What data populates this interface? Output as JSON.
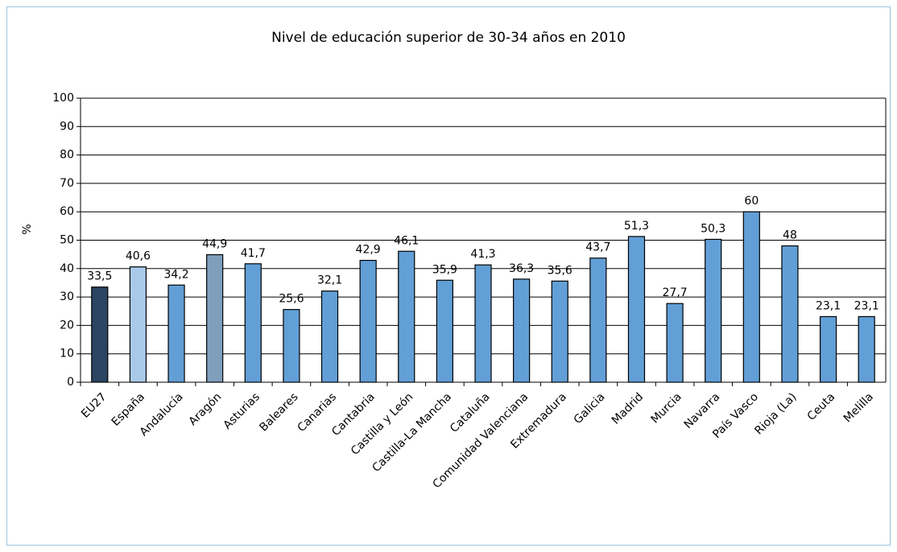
{
  "chart_data": {
    "type": "bar",
    "title": "Nivel de educación superior de 30-34 años en 2010",
    "ylabel": "%",
    "categories": [
      "EU27",
      "España",
      "Andalucía",
      "Aragón",
      "Asturias",
      "Baleares",
      "Canarias",
      "Cantabria",
      "Castilla y León",
      "Castilla-La Mancha",
      "Cataluña",
      "Comunidad Valenciana",
      "Extremadura",
      "Galicia",
      "Madrid",
      "Murcia",
      "Navarra",
      "País Vasco",
      "Rioja (La)",
      "Ceuta",
      "Melilla"
    ],
    "values": [
      33.5,
      40.6,
      34.2,
      44.9,
      41.7,
      25.6,
      32.1,
      42.9,
      46.1,
      35.9,
      41.3,
      36.3,
      35.6,
      43.7,
      51.3,
      27.7,
      50.3,
      60,
      48,
      23.1,
      23.1
    ],
    "value_labels": [
      "33,5",
      "40,6",
      "34,2",
      "44,9",
      "41,7",
      "25,6",
      "32,1",
      "42,9",
      "46,1",
      "35,9",
      "41,3",
      "36,3",
      "35,6",
      "43,7",
      "51,3",
      "27,7",
      "50,3",
      "60",
      "48",
      "23,1",
      "23,1"
    ],
    "colors": [
      "#2b4562",
      "#a9c9e9",
      "#629fd6",
      "#809fbc",
      "#629fd6",
      "#629fd6",
      "#629fd6",
      "#629fd6",
      "#629fd6",
      "#629fd6",
      "#629fd6",
      "#629fd6",
      "#629fd6",
      "#629fd6",
      "#629fd6",
      "#629fd6",
      "#629fd6",
      "#629fd6",
      "#629fd6",
      "#629fd6",
      "#629fd6"
    ],
    "ylim": [
      0,
      100
    ],
    "yticks": [
      0,
      10,
      20,
      30,
      40,
      50,
      60,
      70,
      80,
      90,
      100
    ],
    "grid": true
  }
}
